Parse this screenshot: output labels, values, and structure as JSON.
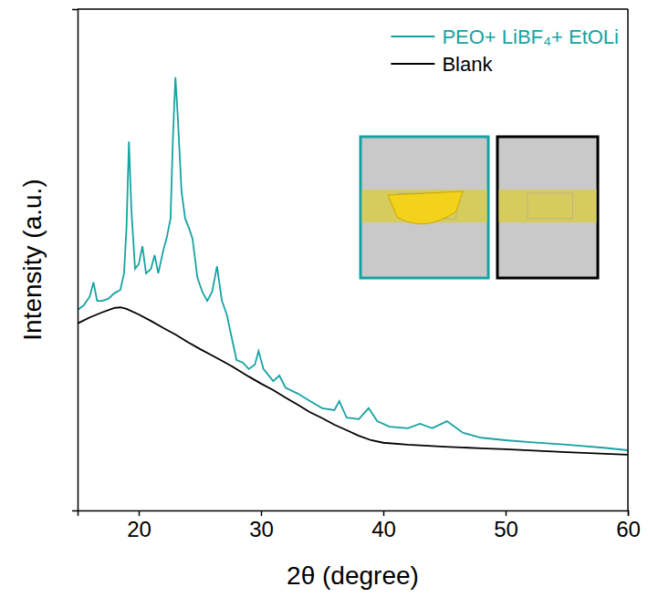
{
  "chart_data": {
    "type": "line",
    "xlabel": "2θ (degree)",
    "ylabel": "Intensity (a.u.)",
    "xlim": [
      15,
      60
    ],
    "xticks": [
      20,
      30,
      40,
      50,
      60
    ],
    "ylim": [
      0,
      100
    ],
    "yticks": [],
    "tick_labels": "x",
    "legend": "upper right",
    "series": [
      {
        "name": "PEO+ LiBF₄+ EtOLi",
        "color": "#17a2a2",
        "x": [
          15.0,
          15.5,
          16.0,
          16.3,
          16.6,
          17.0,
          17.5,
          18.0,
          18.5,
          18.8,
          19.0,
          19.2,
          19.4,
          19.7,
          20.0,
          20.3,
          20.6,
          21.0,
          21.3,
          21.6,
          22.0,
          22.3,
          22.6,
          22.8,
          23.0,
          23.2,
          23.5,
          23.8,
          24.1,
          24.4,
          24.8,
          25.2,
          25.6,
          26.0,
          26.4,
          26.8,
          27.2,
          27.6,
          28.0,
          28.5,
          29.0,
          29.5,
          29.8,
          30.2,
          31.0,
          31.5,
          32.0,
          33.0,
          34.0,
          35.0,
          36.0,
          36.4,
          37.0,
          38.0,
          38.8,
          39.5,
          40.5,
          42.0,
          43.0,
          44.0,
          45.2,
          46.5,
          48.0,
          50.0,
          52.0,
          55.0,
          58.0,
          60.0
        ],
        "values": [
          40.0,
          40.9,
          42.7,
          45.5,
          41.8,
          41.8,
          42.2,
          43.3,
          44.0,
          47.3,
          56.4,
          73.6,
          60.0,
          48.2,
          49.1,
          52.7,
          47.3,
          48.2,
          50.9,
          47.3,
          51.8,
          54.5,
          58.2,
          74.5,
          86.4,
          78.2,
          63.6,
          58.2,
          56.4,
          54.2,
          46.4,
          43.6,
          41.8,
          43.6,
          48.7,
          41.8,
          39.1,
          34.5,
          30.0,
          29.5,
          28.2,
          29.1,
          31.8,
          28.2,
          25.8,
          26.9,
          24.5,
          23.3,
          21.8,
          20.4,
          20.0,
          21.8,
          18.5,
          18.2,
          20.4,
          17.8,
          16.7,
          16.4,
          17.3,
          16.4,
          17.8,
          15.5,
          14.5,
          14.0,
          13.6,
          13.1,
          12.5,
          12.0
        ]
      },
      {
        "name": "Blank",
        "color": "#000000",
        "x": [
          15,
          16,
          17,
          18,
          18.5,
          19,
          20,
          21,
          22,
          23,
          24,
          25,
          26,
          27,
          28,
          29,
          30,
          31,
          32,
          33,
          34,
          35,
          36,
          37,
          38,
          39,
          40,
          42,
          45,
          48,
          50,
          55,
          60
        ],
        "values": [
          37.3,
          38.5,
          39.5,
          40.4,
          40.5,
          40.2,
          39.1,
          37.8,
          36.4,
          35.1,
          33.6,
          32.2,
          30.9,
          29.6,
          28.2,
          26.7,
          25.3,
          24.0,
          22.5,
          21.1,
          19.6,
          18.4,
          17.1,
          16.0,
          14.9,
          14.0,
          13.5,
          13.1,
          12.7,
          12.4,
          12.2,
          11.6,
          11.1
        ]
      }
    ]
  }
}
